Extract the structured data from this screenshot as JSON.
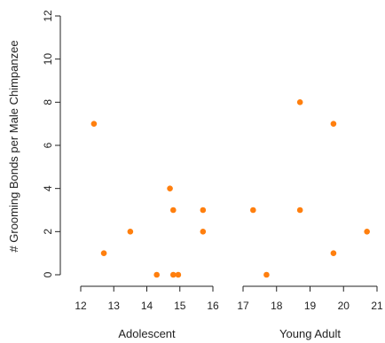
{
  "chart_data": {
    "type": "scatter",
    "ylabel": "# Grooming Bonds per Male Chimpanzee",
    "ylim": [
      0,
      12
    ],
    "yticks": [
      0,
      2,
      4,
      6,
      8,
      10,
      12
    ],
    "point_color": "#ff7f0e",
    "grid": false,
    "panels": [
      {
        "xlabel": "Adolescent",
        "xlim": [
          12,
          16
        ],
        "xticks": [
          12,
          13,
          14,
          15,
          16
        ],
        "points": [
          {
            "x": 12.4,
            "y": 7
          },
          {
            "x": 12.7,
            "y": 1
          },
          {
            "x": 13.5,
            "y": 2
          },
          {
            "x": 14.3,
            "y": 0
          },
          {
            "x": 14.7,
            "y": 4
          },
          {
            "x": 14.8,
            "y": 3
          },
          {
            "x": 14.8,
            "y": 0
          },
          {
            "x": 14.95,
            "y": 0
          },
          {
            "x": 15.7,
            "y": 3
          },
          {
            "x": 15.7,
            "y": 2
          }
        ]
      },
      {
        "xlabel": "Young Adult",
        "xlim": [
          17,
          21
        ],
        "xticks": [
          17,
          18,
          19,
          20,
          21
        ],
        "points": [
          {
            "x": 17.3,
            "y": 3
          },
          {
            "x": 17.7,
            "y": 0
          },
          {
            "x": 18.7,
            "y": 8
          },
          {
            "x": 18.7,
            "y": 3
          },
          {
            "x": 19.7,
            "y": 7
          },
          {
            "x": 19.7,
            "y": 1
          },
          {
            "x": 20.7,
            "y": 2
          }
        ]
      }
    ]
  }
}
